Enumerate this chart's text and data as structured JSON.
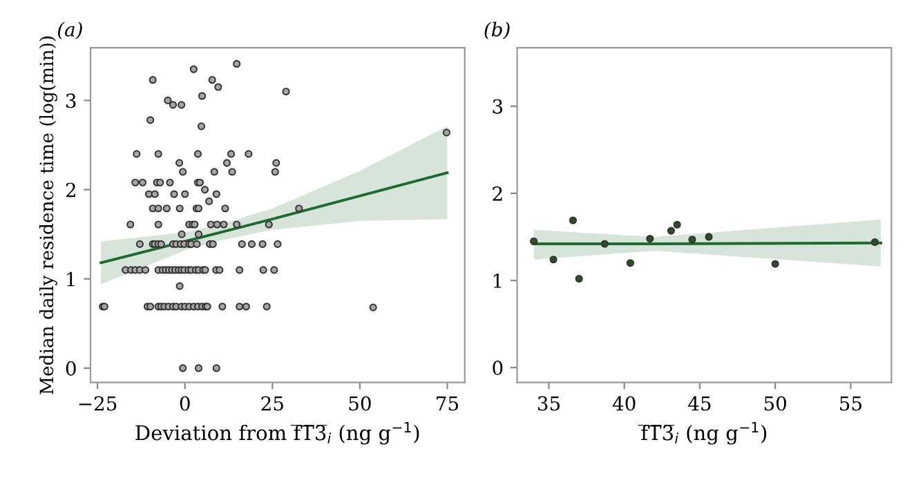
{
  "chart_data": [
    {
      "type": "scatter",
      "title": "(a)",
      "xlabel": "Deviation from f̅T̅3̅$_{i}$ (ng g$^{−1}$)",
      "ylabel": "Median daily residence time (log(min))",
      "xlim": [
        -27,
        80
      ],
      "ylim": [
        -0.16,
        3.59
      ],
      "xticks": [
        {
          "value": -25,
          "label": "−25"
        },
        0,
        25,
        50,
        75
      ],
      "yticks": [
        0,
        1,
        2,
        3
      ],
      "grid": false,
      "legend": false,
      "series": [
        {
          "type": "scatter",
          "color": "#a6a6a6",
          "marker": "circle",
          "x": [
            14.8,
            2.5,
            -9.2,
            7.8,
            9.5,
            28.9,
            4.9,
            -4.9,
            -3.4,
            -1.0,
            -9.9,
            4.7,
            74.8,
            -13.8,
            -7.6,
            3.7,
            13.2,
            18.2,
            -1.6,
            12,
            26.1,
            -0.6,
            8.4,
            13.5,
            25.8,
            -14.2,
            -12.1,
            -8,
            -7.1,
            -4.3,
            3.7,
            4.3,
            5.7,
            -10.3,
            -8.6,
            -3.1,
            0,
            9,
            6.9,
            -9.2,
            -7.6,
            -5.2,
            -1.5,
            3.3,
            3.9,
            11.5,
            32.6,
            -15.6,
            -7.6,
            1.2,
            2.2,
            2.8,
            7.4,
            9.2,
            11.1,
            14.8,
            24,
            -0.9,
            3.9,
            -12.9,
            -9.2,
            -8.6,
            -7.6,
            -6.8,
            -3.4,
            -2.5,
            -1.2,
            -0.2,
            1.2,
            1.8,
            3.4,
            7.1,
            8.0,
            16.3,
            19.1,
            22.2,
            26.5,
            -17,
            -15.4,
            -14.2,
            -12.9,
            -11.3,
            -7.6,
            -6.4,
            -5.5,
            -4.6,
            -3.7,
            -2.8,
            -1.8,
            -1,
            -0.2,
            1,
            1.8,
            3.1,
            3.9,
            5.2,
            5.8,
            8.9,
            9.9,
            15.6,
            22.4,
            25.5,
            -1.5,
            -23.5,
            -23,
            -10.7,
            -9.9,
            -7.6,
            -6.8,
            -5.9,
            -4.7,
            -3.4,
            -2.5,
            -1,
            0,
            1.2,
            2.5,
            3.7,
            4.9,
            5.9,
            6.4,
            10.7,
            15.6,
            17.5,
            23.4,
            53.8,
            -0.6,
            3.9,
            9
          ],
          "values": [
            3.41,
            3.35,
            3.23,
            3.23,
            3.15,
            3.1,
            3.05,
            3.0,
            2.95,
            2.95,
            2.78,
            2.71,
            2.64,
            2.4,
            2.4,
            2.4,
            2.4,
            2.4,
            2.3,
            2.3,
            2.3,
            2.2,
            2.2,
            2.2,
            2.2,
            2.08,
            2.08,
            2.08,
            2.08,
            2.08,
            2.08,
            2.08,
            2.0,
            1.95,
            1.95,
            1.95,
            1.95,
            1.95,
            1.87,
            1.79,
            1.79,
            1.79,
            1.79,
            1.79,
            1.79,
            1.79,
            1.79,
            1.61,
            1.61,
            1.61,
            1.61,
            1.61,
            1.61,
            1.61,
            1.61,
            1.61,
            1.61,
            1.5,
            1.5,
            1.39,
            1.39,
            1.39,
            1.39,
            1.39,
            1.39,
            1.39,
            1.39,
            1.39,
            1.39,
            1.39,
            1.39,
            1.39,
            1.39,
            1.39,
            1.39,
            1.39,
            1.39,
            1.1,
            1.1,
            1.1,
            1.1,
            1.1,
            1.1,
            1.1,
            1.1,
            1.1,
            1.1,
            1.1,
            1.1,
            1.1,
            1.1,
            1.1,
            1.1,
            1.1,
            1.1,
            1.1,
            1.1,
            1.1,
            1.1,
            1.1,
            1.1,
            1.1,
            0.92,
            0.69,
            0.69,
            0.69,
            0.69,
            0.69,
            0.69,
            0.69,
            0.69,
            0.69,
            0.69,
            0.69,
            0.69,
            0.69,
            0.69,
            0.69,
            0.69,
            0.69,
            0.69,
            0.69,
            0.69,
            0.69,
            0.69,
            0.68,
            0,
            0,
            0
          ]
        },
        {
          "type": "line",
          "color": "#1e6b2e",
          "line_style": "solid",
          "x": [
            -24,
            0,
            10,
            25,
            50,
            75
          ],
          "values": [
            1.18,
            1.42,
            1.52,
            1.67,
            1.93,
            2.19
          ],
          "lower": [
            0.94,
            1.32,
            1.43,
            1.55,
            1.65,
            1.67
          ],
          "upper": [
            1.42,
            1.52,
            1.61,
            1.79,
            2.21,
            2.71
          ]
        }
      ]
    },
    {
      "type": "scatter",
      "title": "(b)",
      "xlabel": "f̅T̅3̅$_{i}$ (ng g$^{−1}$)",
      "xlim": [
        32.9,
        57.7
      ],
      "ylim": [
        -0.17,
        3.67
      ],
      "xticks": [
        35,
        40,
        45,
        50,
        55
      ],
      "yticks": [
        0,
        1,
        2,
        3
      ],
      "grid": false,
      "legend": false,
      "series": [
        {
          "type": "scatter",
          "color": "#2c4f26",
          "marker": "circle",
          "x": [
            34.0,
            35.3,
            36.6,
            37.0,
            38.7,
            40.4,
            41.7,
            43.1,
            43.5,
            44.5,
            45.6,
            50.0,
            56.6
          ],
          "values": [
            1.45,
            1.24,
            1.69,
            1.02,
            1.42,
            1.2,
            1.48,
            1.57,
            1.64,
            1.47,
            1.5,
            1.19,
            1.44
          ]
        },
        {
          "type": "line",
          "color": "#1e6b2e",
          "line_style": "solid",
          "x": [
            34,
            42,
            57
          ],
          "values": [
            1.42,
            1.42,
            1.43
          ],
          "lower": [
            1.24,
            1.34,
            1.16
          ],
          "upper": [
            1.58,
            1.5,
            1.7
          ]
        }
      ]
    }
  ]
}
